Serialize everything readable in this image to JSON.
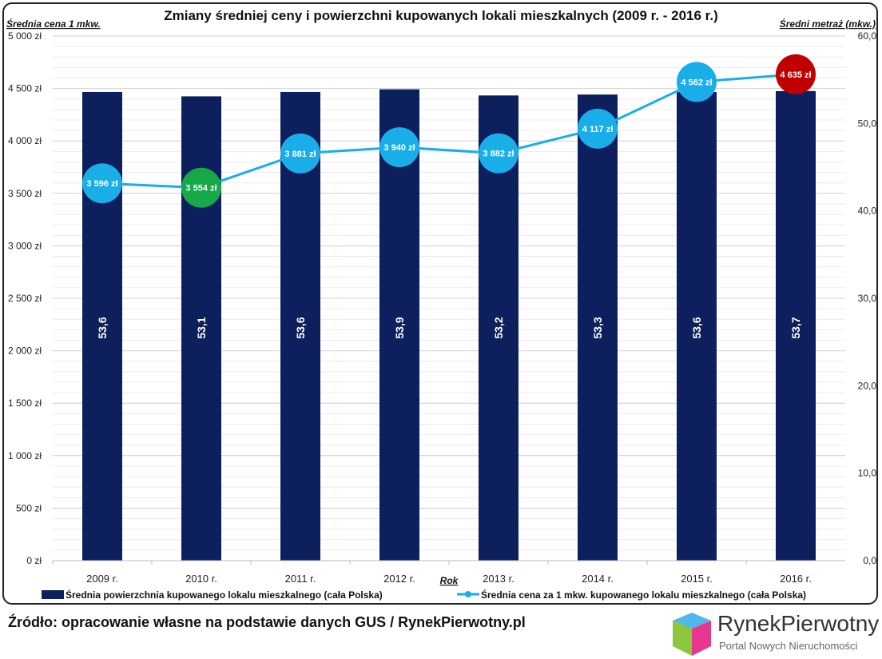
{
  "chart_data": {
    "type": "bar+line",
    "title": "Zmiany średniej ceny i powierzchni kupowanych lokali mieszkalnych (2009 r. - 2016 r.)",
    "ylabel_left": "Średnia cena 1 mkw.",
    "ylabel_right": "Średni metraż (mkw.)",
    "xlabel": "Rok",
    "categories": [
      "2009 r.",
      "2010 r.",
      "2011 r.",
      "2012 r.",
      "2013 r.",
      "2014 r.",
      "2015 r.",
      "2016 r."
    ],
    "ylim_left": [
      0,
      5000
    ],
    "ylim_right": [
      0,
      60
    ],
    "yticks_left": [
      "0 zł",
      "500 zł",
      "1 000 zł",
      "1 500 zł",
      "2 000 zł",
      "2 500 zł",
      "3 000 zł",
      "3 500 zł",
      "4 000 zł",
      "4 500 zł",
      "5 000 zł"
    ],
    "yticks_right": [
      "0,0",
      "10,0",
      "20,0",
      "30,0",
      "40,0",
      "50,0",
      "60,0"
    ],
    "grid": true,
    "legend_placement": "bottom",
    "series": [
      {
        "name": "Średnia powierzchnia kupowanego lokalu mieszkalnego (cała Polska)",
        "type": "bar",
        "axis": "right",
        "color": "#0d1f5c",
        "values": [
          53.6,
          53.1,
          53.6,
          53.9,
          53.2,
          53.3,
          53.6,
          53.7
        ],
        "labels": [
          "53,6",
          "53,1",
          "53,6",
          "53,9",
          "53,2",
          "53,3",
          "53,6",
          "53,7"
        ]
      },
      {
        "name": "Średnia cena za 1 mkw. kupowanego lokalu mieszkalnego (cała Polska)",
        "type": "line",
        "axis": "left",
        "color": "#19aee8",
        "values": [
          3596,
          3554,
          3881,
          3940,
          3882,
          4117,
          4562,
          4635
        ],
        "labels": [
          "3 596 zł",
          "3 554 zł",
          "3 881 zł",
          "3 940 zł",
          "3 882 zł",
          "4 117 zł",
          "4 562 zł",
          "4 635 zł"
        ],
        "marker_colors": [
          "#19aee8",
          "#17a84a",
          "#19aee8",
          "#19aee8",
          "#19aee8",
          "#19aee8",
          "#19aee8",
          "#c00000"
        ]
      }
    ]
  },
  "footer": {
    "source": "Źródło: opracowanie własne na podstawie danych GUS / RynekPierwotny.pl",
    "logo_name": "RynekPierwotny",
    "logo_sub": "Portal Nowych Nieruchomości"
  }
}
